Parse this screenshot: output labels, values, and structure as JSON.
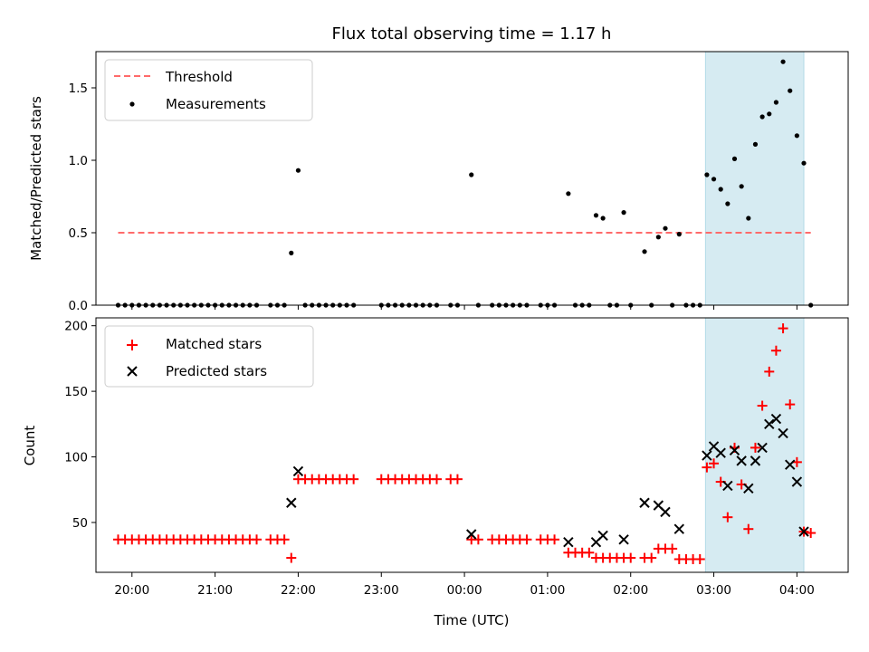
{
  "colors": {
    "threshold": "#ff6b6b",
    "measurement": "#000000",
    "matched": "#ff0000",
    "predicted": "#000000",
    "highlight": "#add8e6"
  },
  "chart_data": [
    {
      "type": "scatter",
      "title": "Flux total observing time = 1.17 h",
      "xlabel": "",
      "ylabel": "Matched/Predicted stars",
      "xlim": [
        "19:34",
        "04:37"
      ],
      "ylim": [
        0,
        1.75
      ],
      "yticks": [
        0.0,
        0.5,
        1.0,
        1.5
      ],
      "ytick_labels": [
        "0.0",
        "0.5",
        "1.0",
        "1.5"
      ],
      "highlight_span": [
        "02:54",
        "04:05"
      ],
      "legend": {
        "position": "upper-left",
        "entries": [
          "Threshold",
          "Measurements"
        ]
      },
      "threshold": {
        "name": "Threshold",
        "value": 0.5,
        "x_range": [
          "19:50",
          "04:10"
        ]
      },
      "series": [
        {
          "name": "Measurements",
          "marker": "dot",
          "points": [
            [
              "19:50",
              0
            ],
            [
              "19:55",
              0
            ],
            [
              "20:00",
              0
            ],
            [
              "20:05",
              0
            ],
            [
              "20:10",
              0
            ],
            [
              "20:15",
              0
            ],
            [
              "20:20",
              0
            ],
            [
              "20:25",
              0
            ],
            [
              "20:30",
              0
            ],
            [
              "20:35",
              0
            ],
            [
              "20:40",
              0
            ],
            [
              "20:45",
              0
            ],
            [
              "20:50",
              0
            ],
            [
              "20:55",
              0
            ],
            [
              "21:00",
              0
            ],
            [
              "21:05",
              0
            ],
            [
              "21:10",
              0
            ],
            [
              "21:15",
              0
            ],
            [
              "21:20",
              0
            ],
            [
              "21:25",
              0
            ],
            [
              "21:30",
              0
            ],
            [
              "21:40",
              0
            ],
            [
              "21:45",
              0
            ],
            [
              "21:50",
              0
            ],
            [
              "21:55",
              0.36
            ],
            [
              "22:00",
              0.93
            ],
            [
              "22:05",
              0
            ],
            [
              "22:10",
              0
            ],
            [
              "22:15",
              0
            ],
            [
              "22:20",
              0
            ],
            [
              "22:25",
              0
            ],
            [
              "22:30",
              0
            ],
            [
              "22:35",
              0
            ],
            [
              "22:40",
              0
            ],
            [
              "23:00",
              0
            ],
            [
              "23:05",
              0
            ],
            [
              "23:10",
              0
            ],
            [
              "23:15",
              0
            ],
            [
              "23:20",
              0
            ],
            [
              "23:25",
              0
            ],
            [
              "23:30",
              0
            ],
            [
              "23:35",
              0
            ],
            [
              "23:40",
              0
            ],
            [
              "23:50",
              0
            ],
            [
              "23:55",
              0
            ],
            [
              "00:05",
              0.9
            ],
            [
              "00:10",
              0
            ],
            [
              "00:20",
              0
            ],
            [
              "00:25",
              0
            ],
            [
              "00:30",
              0
            ],
            [
              "00:35",
              0
            ],
            [
              "00:40",
              0
            ],
            [
              "00:45",
              0
            ],
            [
              "00:55",
              0
            ],
            [
              "01:00",
              0
            ],
            [
              "01:05",
              0
            ],
            [
              "01:15",
              0.77
            ],
            [
              "01:20",
              0
            ],
            [
              "01:25",
              0
            ],
            [
              "01:30",
              0
            ],
            [
              "01:35",
              0.62
            ],
            [
              "01:40",
              0.6
            ],
            [
              "01:45",
              0
            ],
            [
              "01:50",
              0
            ],
            [
              "01:55",
              0.64
            ],
            [
              "02:00",
              0
            ],
            [
              "02:10",
              0.37
            ],
            [
              "02:15",
              0
            ],
            [
              "02:20",
              0.47
            ],
            [
              "02:25",
              0.53
            ],
            [
              "02:30",
              0
            ],
            [
              "02:35",
              0.49
            ],
            [
              "02:40",
              0
            ],
            [
              "02:45",
              0
            ],
            [
              "02:50",
              0
            ],
            [
              "02:55",
              0.9
            ],
            [
              "03:00",
              0.87
            ],
            [
              "03:05",
              0.8
            ],
            [
              "03:10",
              0.7
            ],
            [
              "03:15",
              1.01
            ],
            [
              "03:20",
              0.82
            ],
            [
              "03:25",
              0.6
            ],
            [
              "03:30",
              1.11
            ],
            [
              "03:35",
              1.3
            ],
            [
              "03:40",
              1.32
            ],
            [
              "03:45",
              1.4
            ],
            [
              "03:50",
              1.68
            ],
            [
              "03:55",
              1.48
            ],
            [
              "04:00",
              1.17
            ],
            [
              "04:05",
              0.98
            ],
            [
              "04:10",
              0
            ]
          ]
        }
      ]
    },
    {
      "type": "scatter",
      "title": "",
      "xlabel": "Time (UTC)",
      "ylabel": "Count",
      "xlim": [
        "19:34",
        "04:37"
      ],
      "ylim": [
        12,
        206
      ],
      "yticks": [
        50,
        100,
        150,
        200
      ],
      "ytick_labels": [
        "50",
        "100",
        "150",
        "200"
      ],
      "xtick_labels": [
        "20:00",
        "21:00",
        "22:00",
        "23:00",
        "00:00",
        "01:00",
        "02:00",
        "03:00",
        "04:00"
      ],
      "highlight_span": [
        "02:54",
        "04:05"
      ],
      "legend": {
        "position": "upper-left",
        "entries": [
          "Matched stars",
          "Predicted stars"
        ]
      },
      "series": [
        {
          "name": "Matched stars",
          "marker": "plus",
          "points": [
            [
              "19:50",
              37
            ],
            [
              "19:55",
              37
            ],
            [
              "20:00",
              37
            ],
            [
              "20:05",
              37
            ],
            [
              "20:10",
              37
            ],
            [
              "20:15",
              37
            ],
            [
              "20:20",
              37
            ],
            [
              "20:25",
              37
            ],
            [
              "20:30",
              37
            ],
            [
              "20:35",
              37
            ],
            [
              "20:40",
              37
            ],
            [
              "20:45",
              37
            ],
            [
              "20:50",
              37
            ],
            [
              "20:55",
              37
            ],
            [
              "21:00",
              37
            ],
            [
              "21:05",
              37
            ],
            [
              "21:10",
              37
            ],
            [
              "21:15",
              37
            ],
            [
              "21:20",
              37
            ],
            [
              "21:25",
              37
            ],
            [
              "21:30",
              37
            ],
            [
              "21:40",
              37
            ],
            [
              "21:45",
              37
            ],
            [
              "21:50",
              37
            ],
            [
              "21:55",
              23
            ],
            [
              "22:00",
              83
            ],
            [
              "22:05",
              83
            ],
            [
              "22:10",
              83
            ],
            [
              "22:15",
              83
            ],
            [
              "22:20",
              83
            ],
            [
              "22:25",
              83
            ],
            [
              "22:30",
              83
            ],
            [
              "22:35",
              83
            ],
            [
              "22:40",
              83
            ],
            [
              "23:00",
              83
            ],
            [
              "23:05",
              83
            ],
            [
              "23:10",
              83
            ],
            [
              "23:15",
              83
            ],
            [
              "23:20",
              83
            ],
            [
              "23:25",
              83
            ],
            [
              "23:30",
              83
            ],
            [
              "23:35",
              83
            ],
            [
              "23:40",
              83
            ],
            [
              "23:50",
              83
            ],
            [
              "23:55",
              83
            ],
            [
              "00:05",
              37
            ],
            [
              "00:10",
              37
            ],
            [
              "00:20",
              37
            ],
            [
              "00:25",
              37
            ],
            [
              "00:30",
              37
            ],
            [
              "00:35",
              37
            ],
            [
              "00:40",
              37
            ],
            [
              "00:45",
              37
            ],
            [
              "00:55",
              37
            ],
            [
              "01:00",
              37
            ],
            [
              "01:05",
              37
            ],
            [
              "01:15",
              27
            ],
            [
              "01:20",
              27
            ],
            [
              "01:25",
              27
            ],
            [
              "01:30",
              27
            ],
            [
              "01:35",
              23
            ],
            [
              "01:40",
              23
            ],
            [
              "01:45",
              23
            ],
            [
              "01:50",
              23
            ],
            [
              "01:55",
              23
            ],
            [
              "02:00",
              23
            ],
            [
              "02:10",
              23
            ],
            [
              "02:15",
              23
            ],
            [
              "02:20",
              30
            ],
            [
              "02:25",
              30
            ],
            [
              "02:30",
              30
            ],
            [
              "02:35",
              22
            ],
            [
              "02:40",
              22
            ],
            [
              "02:45",
              22
            ],
            [
              "02:50",
              22
            ],
            [
              "02:55",
              92
            ],
            [
              "03:00",
              95
            ],
            [
              "03:05",
              81
            ],
            [
              "03:10",
              54
            ],
            [
              "03:15",
              107
            ],
            [
              "03:20",
              79
            ],
            [
              "03:25",
              45
            ],
            [
              "03:30",
              107
            ],
            [
              "03:35",
              139
            ],
            [
              "03:40",
              165
            ],
            [
              "03:45",
              181
            ],
            [
              "03:50",
              198
            ],
            [
              "03:55",
              140
            ],
            [
              "04:00",
              96
            ],
            [
              "04:05",
              43
            ],
            [
              "04:10",
              42
            ]
          ]
        },
        {
          "name": "Predicted stars",
          "marker": "x",
          "points": [
            [
              "21:55",
              65
            ],
            [
              "22:00",
              89
            ],
            [
              "00:05",
              41
            ],
            [
              "01:15",
              35
            ],
            [
              "01:35",
              35
            ],
            [
              "01:40",
              40
            ],
            [
              "01:55",
              37
            ],
            [
              "02:10",
              65
            ],
            [
              "02:20",
              63
            ],
            [
              "02:25",
              58
            ],
            [
              "02:35",
              45
            ],
            [
              "02:55",
              101
            ],
            [
              "03:00",
              108
            ],
            [
              "03:05",
              103
            ],
            [
              "03:10",
              78
            ],
            [
              "03:15",
              105
            ],
            [
              "03:20",
              97
            ],
            [
              "03:25",
              76
            ],
            [
              "03:30",
              97
            ],
            [
              "03:35",
              107
            ],
            [
              "03:40",
              125
            ],
            [
              "03:45",
              129
            ],
            [
              "03:50",
              118
            ],
            [
              "03:55",
              94
            ],
            [
              "04:00",
              81
            ],
            [
              "04:05",
              43
            ]
          ]
        }
      ]
    }
  ]
}
